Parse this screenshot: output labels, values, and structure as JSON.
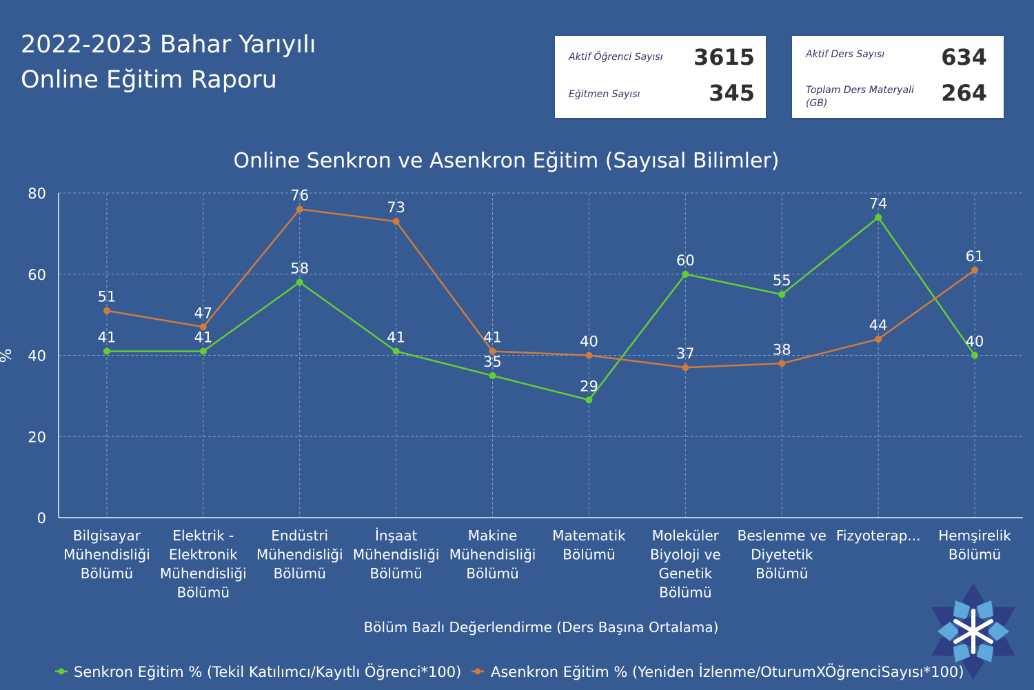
{
  "report": {
    "title_line1": "2022-2023 Bahar Yarıyılı",
    "title_line2": "Online Eğitim Raporu"
  },
  "kpis": {
    "card1": {
      "row1": {
        "label": "Aktif Öğrenci Sayısı",
        "value": "3615"
      },
      "row2": {
        "label": "Eğitmen Sayısı",
        "value": "345"
      }
    },
    "card2": {
      "row1": {
        "label": "Aktif Ders Sayısı",
        "value": "634"
      },
      "row2": {
        "label": "Toplam Ders Materyali (GB)",
        "value": "264"
      }
    }
  },
  "colors": {
    "background": "#365b93",
    "senkron": "#66cc33",
    "asenkron": "#d07a3c"
  },
  "chart_data": {
    "type": "line",
    "title": "Online Senkron ve Asenkron Eğitim (Sayısal Bilimler)",
    "xlabel": "Bölüm Bazlı Değerlendirme (Ders Başına Ortalama)",
    "ylabel": "%",
    "ylim": [
      0,
      80
    ],
    "yticks": [
      0,
      20,
      40,
      60,
      80
    ],
    "grid": true,
    "legend_position": "bottom",
    "categories": [
      [
        "Bilgisayar",
        "Mühendisliği",
        "Bölümü"
      ],
      [
        "Elektrik -",
        "Elektronik",
        "Mühendisliği",
        "Bölümü"
      ],
      [
        "Endüstri",
        "Mühendisliği",
        "Bölümü"
      ],
      [
        "İnşaat",
        "Mühendisliği",
        "Bölümü"
      ],
      [
        "Makine",
        "Mühendisliği",
        "Bölümü"
      ],
      [
        "Matematik",
        "Bölümü"
      ],
      [
        "Moleküler",
        "Biyoloji ve",
        "Genetik",
        "Bölümü"
      ],
      [
        "Beslenme ve",
        "Diyetetik",
        "Bölümü"
      ],
      [
        "Fizyoterap..."
      ],
      [
        "Hemşirelik",
        "Bölümü"
      ]
    ],
    "series": [
      {
        "name": "Senkron Eğitim % (Tekil Katılımcı/Kayıtlı Öğrenci*100)",
        "color": "#66cc33",
        "values": [
          41,
          41,
          58,
          41,
          35,
          29,
          60,
          55,
          74,
          40
        ]
      },
      {
        "name": "Asenkron Eğitim % (Yeniden İzlenme/OturumXÖğrenciSayısı*100)",
        "color": "#d07a3c",
        "values": [
          51,
          47,
          76,
          73,
          41,
          40,
          37,
          38,
          44,
          61
        ]
      }
    ]
  }
}
